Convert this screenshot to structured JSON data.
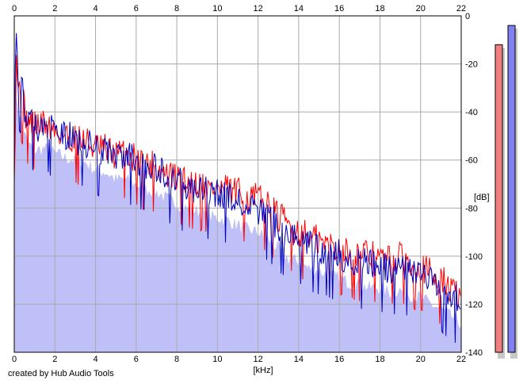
{
  "app": {
    "credit": "created by Hub Audio Tools"
  },
  "colors": {
    "plot_bg": "#ffffff",
    "grid": "#aaaaaa",
    "fill": "#c0c0f8",
    "left_channel": "#ff0000",
    "right_channel": "#0000c0",
    "left_meter": "#f08080",
    "right_meter": "#8080f0",
    "meter_shadow": "#c8c8c8"
  },
  "chart_data": {
    "type": "line",
    "title": "",
    "xlabel": "[kHz]",
    "ylabel": "[dB]",
    "xlim": [
      0,
      22
    ],
    "ylim": [
      -140,
      0
    ],
    "x_ticks": [
      0,
      2,
      4,
      6,
      8,
      10,
      12,
      14,
      16,
      18,
      20,
      22
    ],
    "y_ticks": [
      0,
      -20,
      -40,
      -60,
      -80,
      -100,
      -120,
      -140
    ],
    "x_tick_labels": [
      "0",
      "2",
      "4",
      "6",
      "8",
      "10",
      "12",
      "14",
      "16",
      "18",
      "20",
      "22"
    ],
    "y_tick_labels": [
      "0",
      "-20",
      "-40",
      "-60",
      "-80",
      "-100",
      "-120",
      "-140"
    ],
    "grid": true,
    "series": [
      {
        "color": "#ff0000",
        "x": [
          0,
          0.1,
          0.2,
          0.4,
          0.6,
          1,
          1.5,
          2,
          2.5,
          3,
          3.5,
          4,
          4.5,
          5,
          5.5,
          6,
          6.5,
          7,
          7.5,
          8,
          8.5,
          9,
          9.5,
          10,
          10.5,
          11,
          11.5,
          12,
          12.5,
          13,
          13.5,
          14,
          14.5,
          15,
          15.5,
          16,
          16.5,
          17,
          17.5,
          18,
          18.5,
          19,
          19.5,
          20,
          20.5,
          21,
          21.5,
          22
        ],
        "y": [
          -50,
          -15,
          -30,
          -35,
          -43,
          -46,
          -45,
          -48,
          -50,
          -51,
          -52,
          -55,
          -56,
          -58,
          -57,
          -60,
          -62,
          -63,
          -66,
          -68,
          -70,
          -70,
          -72,
          -72,
          -73,
          -74,
          -76,
          -76,
          -80,
          -84,
          -87,
          -90,
          -92,
          -94,
          -96,
          -97,
          -99,
          -100,
          -100,
          -101,
          -102,
          -101,
          -103,
          -104,
          -108,
          -110,
          -114,
          -118
        ]
      },
      {
        "color": "#0000c0",
        "x": [
          0,
          0.1,
          0.2,
          0.4,
          0.6,
          1,
          1.5,
          2,
          2.5,
          3,
          3.5,
          4,
          4.5,
          5,
          5.5,
          6,
          6.5,
          7,
          7.5,
          8,
          8.5,
          9,
          9.5,
          10,
          10.5,
          11,
          11.5,
          12,
          12.5,
          13,
          13.5,
          14,
          14.5,
          15,
          15.5,
          16,
          16.5,
          17,
          17.5,
          18,
          18.5,
          19,
          19.5,
          20,
          20.5,
          21,
          21.5,
          22
        ],
        "y": [
          -42,
          -10,
          -28,
          -32,
          -44,
          -47,
          -46,
          -49,
          -50,
          -52,
          -53,
          -56,
          -57,
          -59,
          -59,
          -61,
          -63,
          -64,
          -67,
          -69,
          -72,
          -72,
          -74,
          -75,
          -76,
          -78,
          -80,
          -81,
          -84,
          -88,
          -92,
          -93,
          -96,
          -97,
          -99,
          -100,
          -102,
          -103,
          -104,
          -104,
          -106,
          -105,
          -107,
          -108,
          -111,
          -113,
          -116,
          -120
        ]
      }
    ],
    "area_floor": {
      "x": [
        0,
        0.1,
        0.2,
        0.4,
        0.6,
        1,
        1.5,
        2,
        2.5,
        3,
        3.5,
        4,
        4.5,
        5,
        5.5,
        6,
        6.5,
        7,
        7.5,
        8,
        8.5,
        9,
        9.5,
        10,
        10.5,
        11,
        11.5,
        12,
        12.5,
        13,
        13.5,
        14,
        14.5,
        15,
        15.5,
        16,
        16.5,
        17,
        17.5,
        18,
        18.5,
        19,
        19.5,
        20,
        20.5,
        21,
        21.5,
        22
      ],
      "y": [
        -55,
        -30,
        -40,
        -45,
        -52,
        -56,
        -55,
        -57,
        -59,
        -60,
        -61,
        -64,
        -65,
        -68,
        -68,
        -70,
        -72,
        -73,
        -76,
        -78,
        -80,
        -81,
        -83,
        -84,
        -85,
        -87,
        -89,
        -90,
        -93,
        -97,
        -101,
        -102,
        -105,
        -106,
        -108,
        -109,
        -111,
        -112,
        -113,
        -113,
        -115,
        -114,
        -116,
        -117,
        -120,
        -122,
        -125,
        -128
      ]
    },
    "level_meters": [
      {
        "channel": "left",
        "peak_db": -12,
        "color": "#f08080"
      },
      {
        "channel": "right",
        "peak_db": -4,
        "color": "#8080f0"
      }
    ]
  }
}
